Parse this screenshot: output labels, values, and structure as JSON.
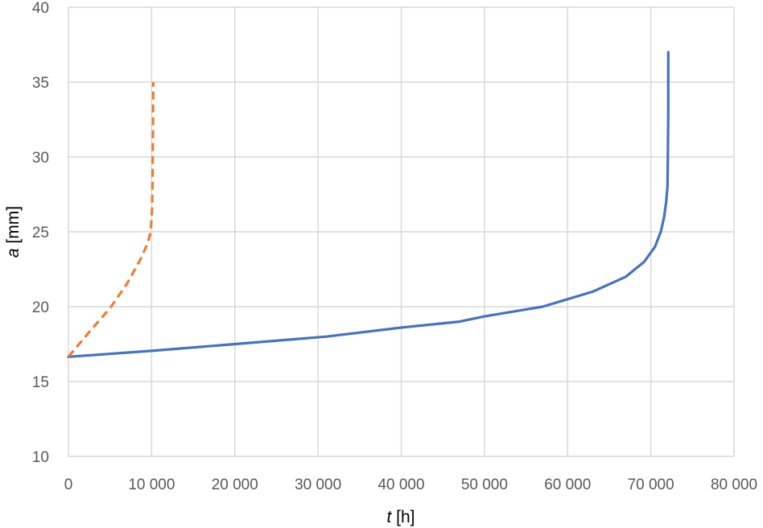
{
  "chart_data": {
    "type": "line",
    "title": "",
    "xlabel": {
      "var": "t",
      "unit": " [h]"
    },
    "ylabel": {
      "var": "a",
      "unit": " [mm]"
    },
    "xlim": [
      0,
      80000
    ],
    "ylim": [
      10,
      40
    ],
    "x_ticks": [
      0,
      10000,
      20000,
      30000,
      40000,
      50000,
      60000,
      70000,
      80000
    ],
    "x_tick_labels": [
      "0",
      "10 000",
      "20 000",
      "30 000",
      "40 000",
      "50 000",
      "60 000",
      "70 000",
      "80 000"
    ],
    "y_ticks": [
      10,
      15,
      20,
      25,
      30,
      35,
      40
    ],
    "y_tick_labels": [
      "10",
      "15",
      "20",
      "25",
      "30",
      "35",
      "40"
    ],
    "grid": true,
    "legend": "none",
    "series": [
      {
        "color": "#4472c4",
        "style": "solid",
        "x": [
          0,
          10000,
          20000,
          31000,
          40000,
          47000,
          50000,
          57000,
          60000,
          63000,
          67000,
          69200,
          70500,
          71200,
          71600,
          71850,
          72000,
          72050,
          72100,
          72100
        ],
        "y": [
          16.65,
          17.05,
          17.5,
          18.0,
          18.6,
          19.0,
          19.35,
          20.0,
          20.5,
          21.0,
          22.0,
          23.0,
          24.0,
          25.0,
          26.0,
          27.0,
          28.0,
          30.0,
          33.0,
          37.0
        ]
      },
      {
        "color": "#ed7d31",
        "style": "dashed",
        "x": [
          0,
          2500,
          5000,
          7000,
          8700,
          9500,
          9900,
          10050,
          10100,
          10150,
          10200
        ],
        "y": [
          16.65,
          18.3,
          19.9,
          21.5,
          23.2,
          24.2,
          25.0,
          26.5,
          28.0,
          31.0,
          35.0
        ]
      }
    ]
  }
}
